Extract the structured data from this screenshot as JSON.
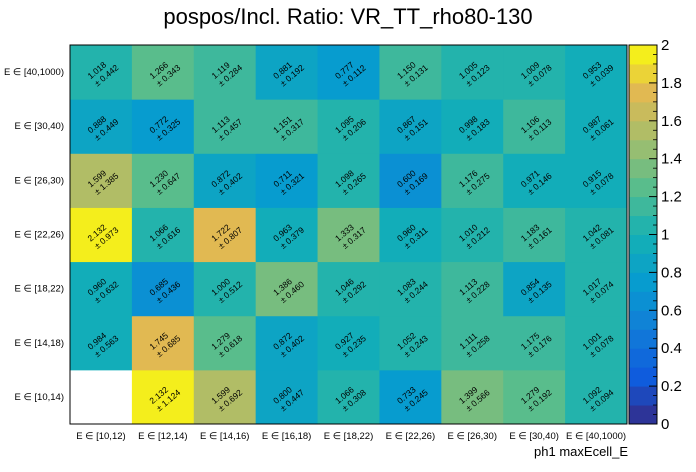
{
  "chart_data": {
    "type": "heatmap",
    "title": "pospos/Incl. Ratio: VR_TT_rho80-130",
    "xlabel": "ph1 maxEcell_E",
    "ylabel": "",
    "x_categories": [
      "E ∈ [10,12)",
      "E ∈ [12,14)",
      "E ∈ [14,16)",
      "E ∈ [16,18)",
      "E ∈ [18,22)",
      "E ∈ [22,26)",
      "E ∈ [26,30)",
      "E ∈ [30,40)",
      "E ∈ [40,1000)"
    ],
    "y_categories": [
      "E ∈ [10,14)",
      "E ∈ [14,18)",
      "E ∈ [18,22)",
      "E ∈ [22,26)",
      "E ∈ [26,30)",
      "E ∈ [30,40)",
      "E ∈ [40,1000)"
    ],
    "zlim": [
      0,
      2
    ],
    "colorbar_ticks": [
      "0",
      "0.2",
      "0.4",
      "0.6",
      "0.8",
      "1",
      "1.2",
      "1.4",
      "1.6",
      "1.8",
      "2"
    ],
    "values": [
      [
        null,
        2.132,
        1.599,
        0.8,
        1.066,
        0.733,
        1.399,
        1.279,
        1.092
      ],
      [
        0.984,
        1.745,
        1.279,
        0.872,
        0.927,
        1.052,
        1.111,
        1.175,
        1.001
      ],
      [
        0.96,
        0.685,
        1.0,
        1.386,
        1.046,
        1.083,
        1.113,
        0.854,
        1.017
      ],
      [
        2.132,
        1.066,
        1.722,
        0.963,
        1.333,
        0.96,
        1.01,
        1.183,
        1.042
      ],
      [
        1.599,
        1.23,
        0.872,
        0.711,
        1.098,
        0.6,
        1.176,
        0.971,
        0.915
      ],
      [
        0.888,
        0.772,
        1.113,
        1.151,
        1.095,
        0.867,
        0.998,
        1.106,
        0.987
      ],
      [
        1.018,
        1.266,
        1.119,
        0.881,
        0.777,
        1.15,
        1.005,
        1.009,
        0.953
      ]
    ],
    "errors": [
      [
        null,
        1.124,
        0.692,
        0.447,
        0.308,
        0.245,
        0.566,
        0.192,
        0.094
      ],
      [
        0.563,
        0.685,
        0.618,
        0.402,
        0.235,
        0.243,
        0.258,
        0.176,
        0.078
      ],
      [
        0.632,
        0.436,
        0.512,
        0.46,
        0.292,
        0.244,
        0.228,
        0.135,
        0.074
      ],
      [
        0.973,
        0.616,
        0.807,
        0.379,
        0.317,
        0.311,
        0.212,
        0.161,
        0.081
      ],
      [
        1.385,
        0.647,
        0.402,
        0.321,
        0.265,
        0.169,
        0.275,
        0.146,
        0.078
      ],
      [
        0.449,
        0.325,
        0.457,
        0.317,
        0.206,
        0.151,
        0.183,
        0.113,
        0.061
      ],
      [
        0.442,
        0.343,
        0.284,
        0.192,
        0.112,
        0.131,
        0.123,
        0.078,
        0.039
      ]
    ]
  }
}
